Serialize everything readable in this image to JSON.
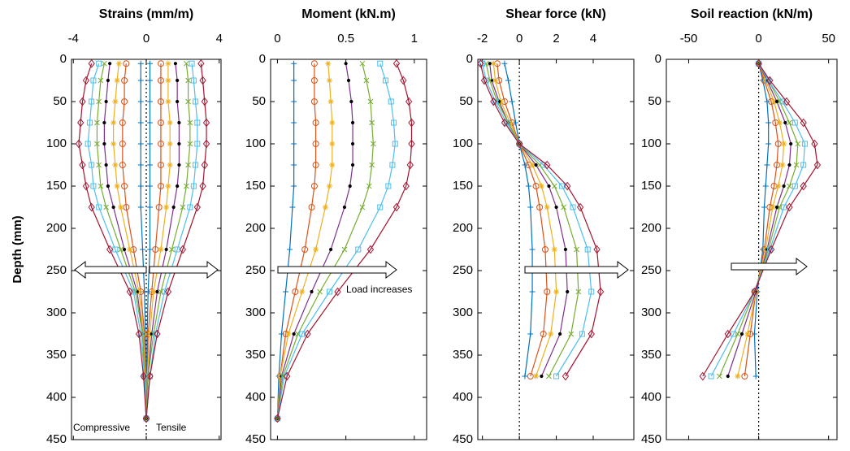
{
  "chart_data": [
    {
      "type": "line",
      "title": "Strains (mm/m)",
      "y_label": "Depth (mm)",
      "xlim": [
        -4.1,
        4.1
      ],
      "xticks": [
        -4,
        0,
        4
      ],
      "ylim": [
        0,
        450
      ],
      "yticks": [
        0,
        50,
        100,
        150,
        200,
        250,
        300,
        350,
        400,
        450
      ],
      "zero_line": true,
      "annotations": [
        "Compressive",
        "Tensile"
      ],
      "depth": [
        5,
        25,
        50,
        75,
        100,
        125,
        150,
        175,
        225,
        275,
        325,
        375,
        425
      ],
      "series": [
        {
          "color": "#0072bd",
          "marker": "plus",
          "values": [
            0.2,
            0.2,
            0.2,
            0.2,
            0.2,
            0.2,
            0.2,
            0.2,
            0.2,
            0.1,
            0.05,
            0.02,
            0
          ]
        },
        {
          "color": "#d95319",
          "marker": "circle",
          "values": [
            0.8,
            0.8,
            0.8,
            0.8,
            0.8,
            0.8,
            0.8,
            0.7,
            0.5,
            0.3,
            0.1,
            0.05,
            0
          ]
        },
        {
          "color": "#edb120",
          "marker": "star",
          "values": [
            1.2,
            1.2,
            1.2,
            1.3,
            1.3,
            1.3,
            1.2,
            1.1,
            0.8,
            0.4,
            0.2,
            0.05,
            0
          ]
        },
        {
          "color": "#7e2f8e",
          "marker": "dot",
          "values": [
            1.6,
            1.7,
            1.7,
            1.8,
            1.8,
            1.8,
            1.7,
            1.5,
            1.1,
            0.6,
            0.3,
            0.1,
            0
          ]
        },
        {
          "color": "#77ac30",
          "marker": "x",
          "values": [
            2.2,
            2.3,
            2.3,
            2.4,
            2.4,
            2.3,
            2.2,
            2.0,
            1.4,
            0.8,
            0.4,
            0.1,
            0
          ]
        },
        {
          "color": "#4dbeee",
          "marker": "square",
          "values": [
            2.5,
            2.6,
            2.7,
            2.8,
            2.8,
            2.7,
            2.6,
            2.4,
            1.7,
            1.0,
            0.5,
            0.2,
            0
          ]
        },
        {
          "color": "#a2142f",
          "marker": "diamond",
          "values": [
            3.0,
            3.1,
            3.2,
            3.3,
            3.3,
            3.2,
            3.1,
            2.8,
            2.0,
            1.2,
            0.6,
            0.2,
            0
          ]
        },
        {
          "color": "#0072bd",
          "marker": "plus",
          "values": [
            -0.3,
            -0.3,
            -0.3,
            -0.3,
            -0.3,
            -0.3,
            -0.3,
            -0.3,
            -0.2,
            -0.1,
            -0.05,
            -0.02,
            0
          ]
        },
        {
          "color": "#d95319",
          "marker": "circle",
          "values": [
            -1.1,
            -1.2,
            -1.2,
            -1.3,
            -1.3,
            -1.3,
            -1.2,
            -1.1,
            -0.7,
            -0.3,
            -0.1,
            -0.05,
            0
          ]
        },
        {
          "color": "#edb120",
          "marker": "star",
          "values": [
            -1.5,
            -1.6,
            -1.7,
            -1.8,
            -1.8,
            -1.7,
            -1.6,
            -1.4,
            -0.9,
            -0.4,
            -0.15,
            -0.05,
            0
          ]
        },
        {
          "color": "#7e2f8e",
          "marker": "dot",
          "values": [
            -2.0,
            -2.1,
            -2.2,
            -2.3,
            -2.3,
            -2.2,
            -2.1,
            -1.8,
            -1.2,
            -0.5,
            -0.2,
            -0.1,
            0
          ]
        },
        {
          "color": "#77ac30",
          "marker": "x",
          "values": [
            -2.3,
            -2.5,
            -2.6,
            -2.7,
            -2.7,
            -2.6,
            -2.5,
            -2.2,
            -1.4,
            -0.6,
            -0.2,
            -0.1,
            0
          ]
        },
        {
          "color": "#4dbeee",
          "marker": "square",
          "values": [
            -2.6,
            -2.9,
            -3.0,
            -3.1,
            -3.2,
            -3.0,
            -2.9,
            -2.6,
            -1.7,
            -0.7,
            -0.3,
            -0.1,
            0
          ]
        },
        {
          "color": "#a2142f",
          "marker": "diamond",
          "values": [
            -3.0,
            -3.3,
            -3.5,
            -3.6,
            -3.7,
            -3.5,
            -3.3,
            -3.0,
            -2.0,
            -0.9,
            -0.4,
            -0.15,
            0
          ]
        }
      ]
    },
    {
      "type": "line",
      "title": "Moment (kN.m)",
      "xlim": [
        -0.05,
        1.09
      ],
      "xticks": [
        0,
        0.5,
        1
      ],
      "ylim": [
        0,
        450
      ],
      "yticks": [
        0,
        50,
        100,
        150,
        200,
        250,
        300,
        350,
        400,
        450
      ],
      "zero_line": false,
      "annotations": [
        "Load increases"
      ],
      "depth": [
        5,
        25,
        50,
        75,
        100,
        125,
        150,
        175,
        225,
        275,
        325,
        375,
        425
      ],
      "series": [
        {
          "color": "#0072bd",
          "marker": "plus",
          "values": [
            0.12,
            0.12,
            0.12,
            0.12,
            0.12,
            0.12,
            0.12,
            0.11,
            0.09,
            0.06,
            0.03,
            0.01,
            0
          ]
        },
        {
          "color": "#d95319",
          "marker": "circle",
          "values": [
            0.27,
            0.27,
            0.27,
            0.28,
            0.28,
            0.28,
            0.27,
            0.25,
            0.2,
            0.13,
            0.06,
            0.02,
            0
          ]
        },
        {
          "color": "#edb120",
          "marker": "star",
          "values": [
            0.37,
            0.38,
            0.39,
            0.4,
            0.4,
            0.4,
            0.38,
            0.35,
            0.28,
            0.18,
            0.08,
            0.02,
            0
          ]
        },
        {
          "color": "#7e2f8e",
          "marker": "dot",
          "values": [
            0.5,
            0.52,
            0.54,
            0.55,
            0.55,
            0.55,
            0.53,
            0.49,
            0.39,
            0.25,
            0.12,
            0.03,
            0
          ]
        },
        {
          "color": "#77ac30",
          "marker": "x",
          "values": [
            0.62,
            0.65,
            0.68,
            0.69,
            0.7,
            0.69,
            0.67,
            0.62,
            0.49,
            0.31,
            0.15,
            0.04,
            0
          ]
        },
        {
          "color": "#4dbeee",
          "marker": "square",
          "values": [
            0.75,
            0.79,
            0.83,
            0.85,
            0.86,
            0.84,
            0.81,
            0.75,
            0.59,
            0.38,
            0.18,
            0.05,
            0
          ]
        },
        {
          "color": "#a2142f",
          "marker": "diamond",
          "values": [
            0.87,
            0.92,
            0.96,
            0.98,
            0.98,
            0.97,
            0.94,
            0.87,
            0.68,
            0.44,
            0.22,
            0.07,
            0
          ]
        }
      ]
    },
    {
      "type": "line",
      "title": "Shear force (kN)",
      "xlim": [
        -2.25,
        6.2
      ],
      "xticks": [
        -2,
        0,
        2,
        4
      ],
      "ylim": [
        0,
        450
      ],
      "yticks": [
        0,
        50,
        100,
        150,
        200,
        250,
        300,
        350,
        400,
        450
      ],
      "zero_line": true,
      "depth": [
        5,
        25,
        50,
        75,
        100,
        125,
        150,
        175,
        225,
        275,
        325,
        375
      ],
      "series": [
        {
          "color": "#0072bd",
          "marker": "plus",
          "values": [
            -0.8,
            -0.6,
            -0.4,
            -0.2,
            0,
            0.3,
            0.5,
            0.6,
            0.7,
            0.7,
            0.6,
            0.3
          ]
        },
        {
          "color": "#d95319",
          "marker": "circle",
          "values": [
            -1.2,
            -1.1,
            -0.8,
            -0.4,
            0,
            0.5,
            0.9,
            1.1,
            1.4,
            1.5,
            1.3,
            0.6
          ]
        },
        {
          "color": "#edb120",
          "marker": "star",
          "values": [
            -1.4,
            -1.3,
            -1.0,
            -0.5,
            0,
            0.7,
            1.2,
            1.5,
            1.9,
            2.0,
            1.7,
            0.9
          ]
        },
        {
          "color": "#7e2f8e",
          "marker": "dot",
          "values": [
            -1.6,
            -1.5,
            -1.1,
            -0.6,
            0,
            0.9,
            1.6,
            2.0,
            2.5,
            2.6,
            2.2,
            1.2
          ]
        },
        {
          "color": "#77ac30",
          "marker": "x",
          "values": [
            -1.8,
            -1.6,
            -1.2,
            -0.6,
            0,
            1.1,
            1.9,
            2.4,
            3.1,
            3.2,
            2.8,
            1.6
          ]
        },
        {
          "color": "#4dbeee",
          "marker": "square",
          "values": [
            -2.0,
            -1.8,
            -1.3,
            -0.7,
            0,
            1.3,
            2.3,
            2.9,
            3.7,
            3.9,
            3.4,
            2.0
          ]
        },
        {
          "color": "#a2142f",
          "marker": "diamond",
          "values": [
            -2.1,
            -1.9,
            -1.4,
            -0.8,
            0,
            1.5,
            2.6,
            3.3,
            4.2,
            4.4,
            3.9,
            2.5
          ]
        }
      ]
    },
    {
      "type": "line",
      "title": "Soil reaction (kN/m)",
      "xlim": [
        -66,
        56
      ],
      "xticks": [
        -50,
        0,
        50
      ],
      "ylim": [
        0,
        450
      ],
      "yticks": [
        0,
        50,
        100,
        150,
        200,
        250,
        300,
        350,
        400,
        450
      ],
      "zero_line": true,
      "depth": [
        5,
        25,
        50,
        75,
        100,
        125,
        150,
        175,
        225,
        275,
        325,
        375
      ],
      "series": [
        {
          "color": "#0072bd",
          "marker": "plus",
          "values": [
            0,
            3,
            6,
            7,
            7,
            6,
            5,
            4,
            3,
            -1,
            -3,
            -2
          ]
        },
        {
          "color": "#d95319",
          "marker": "circle",
          "values": [
            0,
            4,
            9,
            12,
            14,
            13,
            11,
            8,
            4,
            -2,
            -6,
            -10
          ]
        },
        {
          "color": "#edb120",
          "marker": "star",
          "values": [
            0,
            5,
            11,
            15,
            18,
            17,
            14,
            10,
            5,
            -2,
            -8,
            -15
          ]
        },
        {
          "color": "#7e2f8e",
          "marker": "dot",
          "values": [
            0,
            6,
            13,
            19,
            23,
            22,
            18,
            13,
            6,
            -2,
            -12,
            -22
          ]
        },
        {
          "color": "#77ac30",
          "marker": "x",
          "values": [
            0,
            7,
            15,
            22,
            28,
            27,
            22,
            15,
            7,
            -3,
            -15,
            -28
          ]
        },
        {
          "color": "#4dbeee",
          "marker": "square",
          "values": [
            0,
            7,
            17,
            26,
            33,
            32,
            26,
            18,
            8,
            -3,
            -18,
            -34
          ]
        },
        {
          "color": "#a2142f",
          "marker": "diamond",
          "values": [
            0,
            8,
            20,
            32,
            40,
            42,
            32,
            22,
            9,
            -3,
            -22,
            -40
          ]
        }
      ]
    }
  ]
}
